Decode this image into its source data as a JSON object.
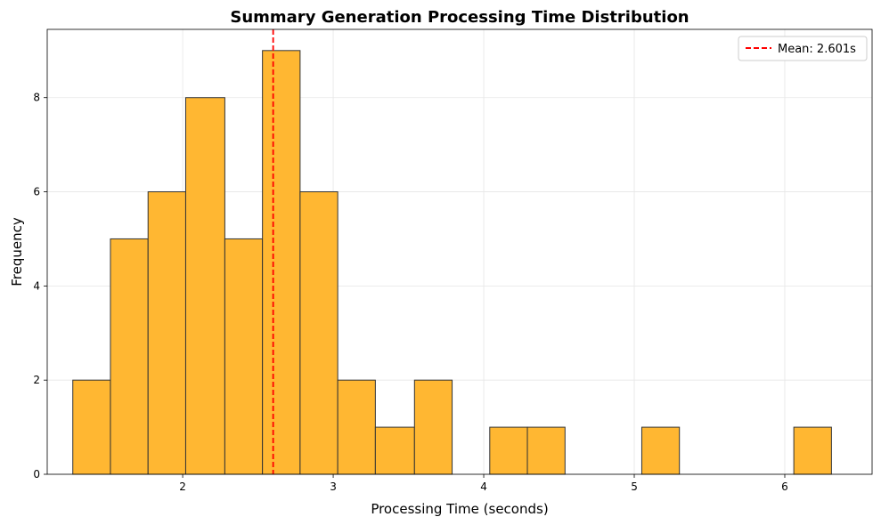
{
  "chart_data": {
    "type": "bar",
    "title": "Summary Generation Processing Time Distribution",
    "xlabel": "Processing Time (seconds)",
    "ylabel": "Frequency",
    "xlim": [
      1.1,
      6.58
    ],
    "ylim": [
      0,
      9.45
    ],
    "xticks": [
      2,
      3,
      4,
      5,
      6
    ],
    "yticks": [
      0,
      2,
      4,
      6,
      8
    ],
    "grid": true,
    "bar_color": "#FFB732",
    "bar_edge_color": "#333333",
    "bins": [
      {
        "start": 1.27,
        "end": 1.52,
        "count": 2
      },
      {
        "start": 1.52,
        "end": 1.77,
        "count": 5
      },
      {
        "start": 1.77,
        "end": 2.02,
        "count": 6
      },
      {
        "start": 2.02,
        "end": 2.28,
        "count": 8
      },
      {
        "start": 2.28,
        "end": 2.53,
        "count": 5
      },
      {
        "start": 2.53,
        "end": 2.78,
        "count": 9
      },
      {
        "start": 2.78,
        "end": 3.03,
        "count": 6
      },
      {
        "start": 3.03,
        "end": 3.28,
        "count": 2
      },
      {
        "start": 3.28,
        "end": 3.54,
        "count": 1
      },
      {
        "start": 3.54,
        "end": 3.79,
        "count": 2
      },
      {
        "start": 3.79,
        "end": 4.04,
        "count": 0
      },
      {
        "start": 4.04,
        "end": 4.29,
        "count": 1
      },
      {
        "start": 4.29,
        "end": 4.54,
        "count": 1
      },
      {
        "start": 4.54,
        "end": 4.8,
        "count": 0
      },
      {
        "start": 4.8,
        "end": 5.05,
        "count": 0
      },
      {
        "start": 5.05,
        "end": 5.3,
        "count": 1
      },
      {
        "start": 5.3,
        "end": 5.55,
        "count": 0
      },
      {
        "start": 5.55,
        "end": 5.8,
        "count": 0
      },
      {
        "start": 5.8,
        "end": 6.06,
        "count": 0
      },
      {
        "start": 6.06,
        "end": 6.31,
        "count": 1
      }
    ],
    "mean_line": {
      "value": 2.601,
      "label": "Mean: 2.601s",
      "color": "#FF0000",
      "style": "dashed"
    },
    "legend": {
      "placement": "top-right",
      "entries": [
        "Mean: 2.601s"
      ]
    }
  }
}
